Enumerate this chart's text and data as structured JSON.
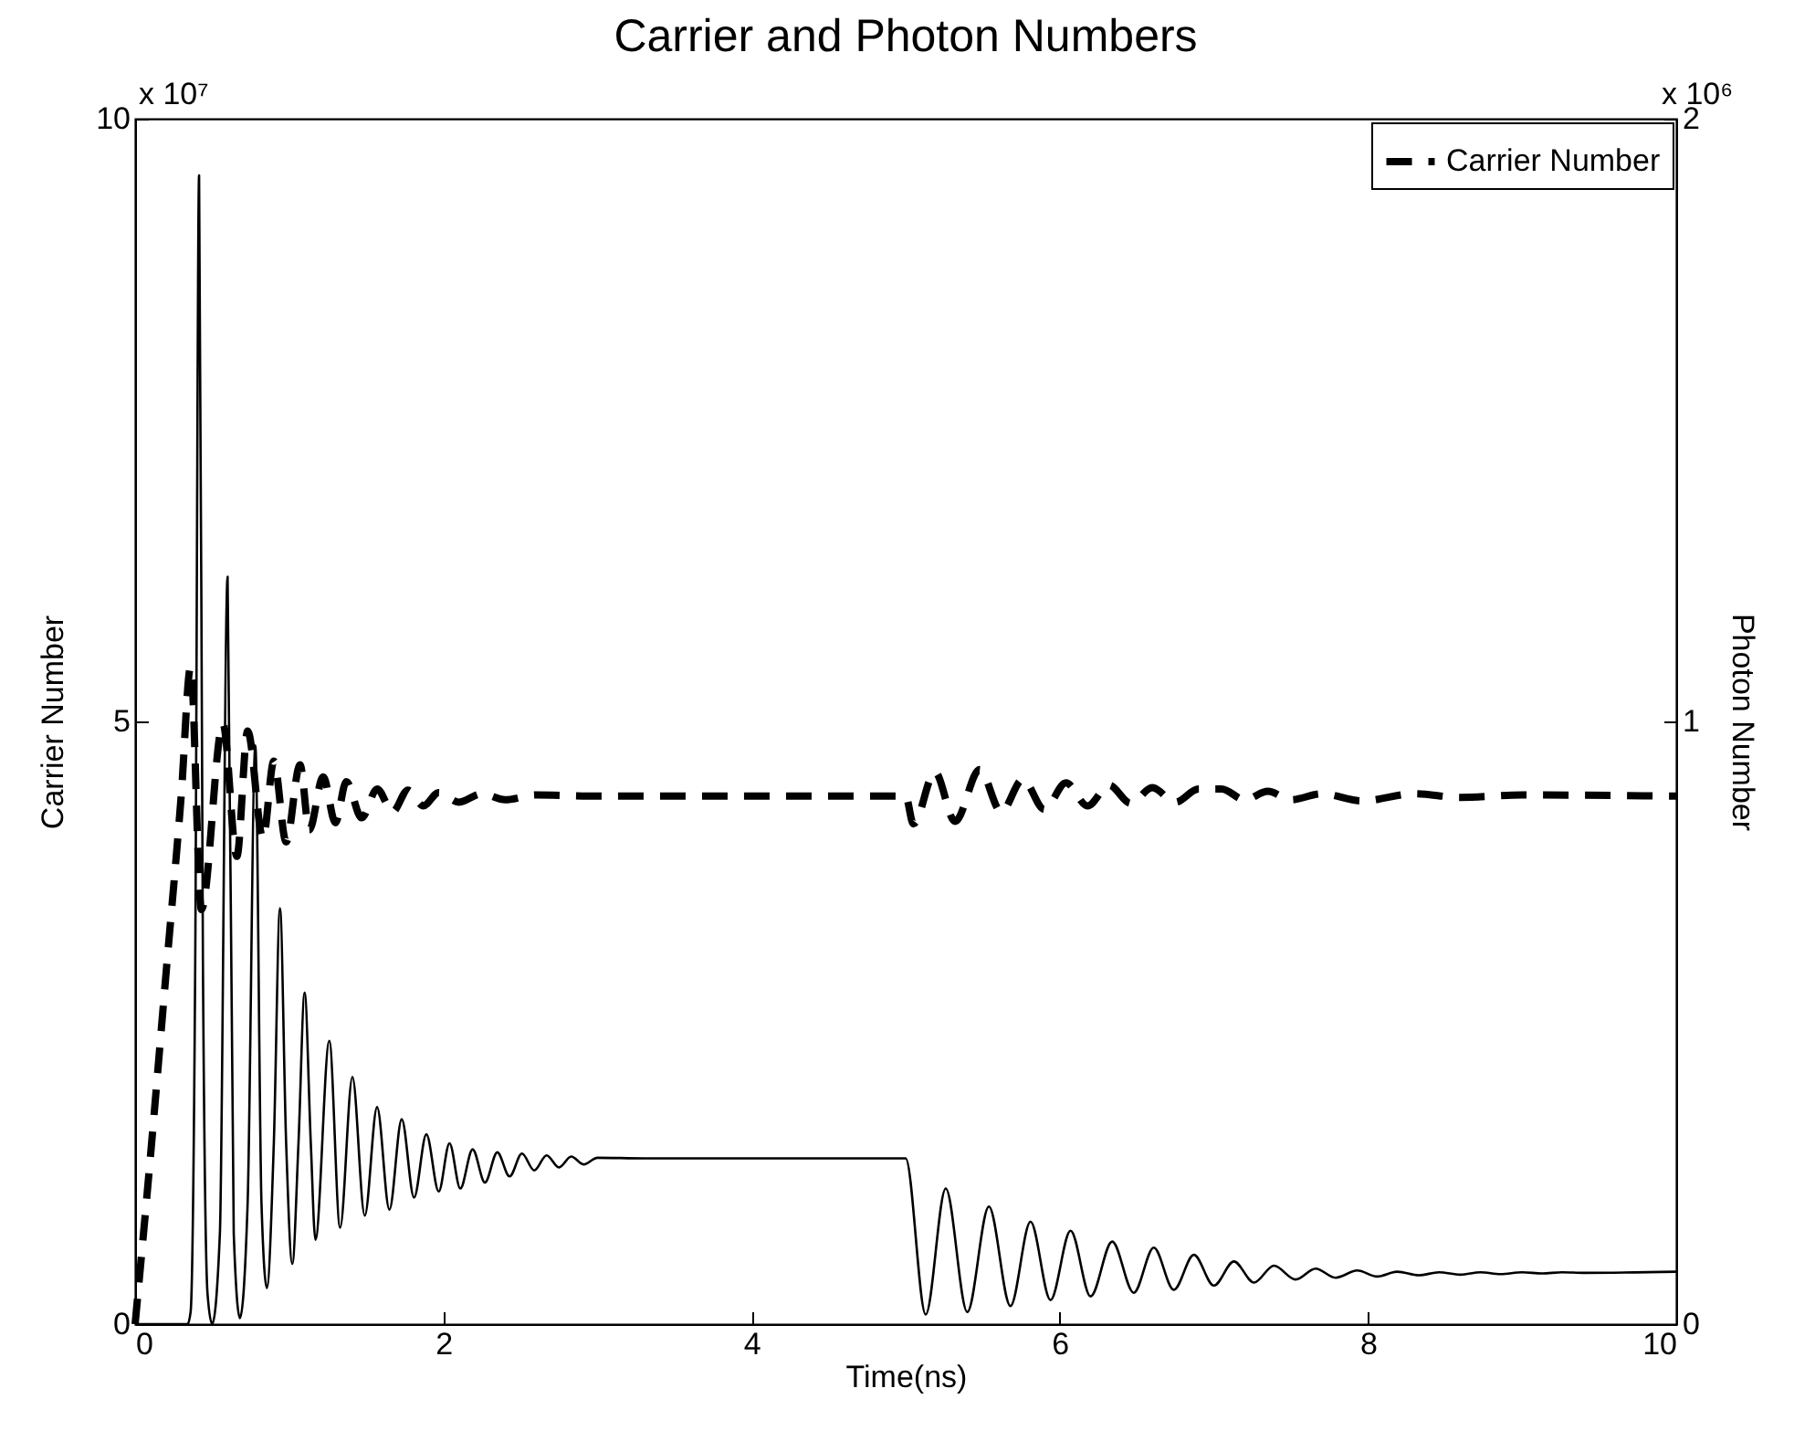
{
  "chart_data": {
    "type": "line",
    "title": "Carrier and Photon Numbers",
    "xlabel": "Time(ns)",
    "ylabel": "Carrier Number",
    "y2label": "Photon Number",
    "xlim": [
      0,
      10
    ],
    "xticks": [
      0,
      2,
      4,
      6,
      8,
      10
    ],
    "ylim": [
      0,
      10
    ],
    "yticks": [
      0,
      5,
      10
    ],
    "y2lim": [
      0,
      2
    ],
    "y2ticks": [
      0,
      1,
      2
    ],
    "grid": false,
    "legend": "top right",
    "marker": "none",
    "annotations": [
      "x 10⁷",
      "x 10⁶"
    ],
    "series": [
      {
        "name": "Carrier Number",
        "color": "#000000",
        "line_style": "dashed",
        "x": [
          0,
          0.1,
          0.2,
          0.3,
          0.36,
          0.43,
          0.57,
          0.66,
          0.73,
          0.83,
          0.9,
          0.98,
          1.07,
          1.13,
          1.22,
          1.3,
          1.37,
          1.47,
          1.57,
          1.67,
          1.77,
          1.87,
          1.97,
          2.1,
          2.25,
          2.4,
          2.6,
          3.0,
          5.0,
          5.05,
          5.19,
          5.32,
          5.48,
          5.62,
          5.76,
          5.9,
          6.04,
          6.18,
          6.32,
          6.46,
          6.6,
          6.75,
          6.9,
          7.05,
          7.2,
          7.35,
          7.5,
          7.7,
          7.96,
          8.3,
          8.6,
          9.0,
          10
        ],
        "values": [
          0,
          1.4,
          2.9,
          4.4,
          5.45,
          3.44,
          4.98,
          3.88,
          4.92,
          4.03,
          4.67,
          4.0,
          4.64,
          4.1,
          4.54,
          4.16,
          4.5,
          4.2,
          4.44,
          4.25,
          4.43,
          4.3,
          4.41,
          4.33,
          4.4,
          4.35,
          4.39,
          4.38,
          4.38,
          4.15,
          4.58,
          4.17,
          4.6,
          4.25,
          4.52,
          4.27,
          4.49,
          4.3,
          4.47,
          4.32,
          4.45,
          4.33,
          4.44,
          4.44,
          4.35,
          4.42,
          4.35,
          4.4,
          4.34,
          4.4,
          4.37,
          4.39,
          4.38
        ]
      },
      {
        "color": "#000000",
        "line_style": "solid",
        "axis": "y2",
        "x": [
          0,
          0.34,
          0.36,
          0.39,
          0.415,
          0.44,
          0.47,
          0.5,
          0.55,
          0.6,
          0.64,
          0.68,
          0.73,
          0.78,
          0.82,
          0.855,
          0.9,
          0.94,
          0.98,
          1.02,
          1.06,
          1.1,
          1.14,
          1.17,
          1.26,
          1.33,
          1.41,
          1.49,
          1.57,
          1.65,
          1.73,
          1.81,
          1.89,
          1.97,
          2.04,
          2.11,
          2.19,
          2.27,
          2.35,
          2.43,
          2.51,
          2.59,
          2.67,
          2.75,
          2.83,
          2.91,
          3.0,
          3.3,
          5.0,
          5.13,
          5.26,
          5.4,
          5.54,
          5.68,
          5.81,
          5.94,
          6.07,
          6.2,
          6.34,
          6.48,
          6.61,
          6.74,
          6.87,
          7.0,
          7.13,
          7.26,
          7.39,
          7.53,
          7.66,
          7.79,
          7.93,
          8.06,
          8.19,
          8.33,
          8.46,
          8.6,
          8.73,
          8.86,
          9.0,
          9.13,
          9.26,
          9.4,
          10
        ],
        "values": [
          0,
          0,
          0.02,
          0.6,
          1.906,
          0.6,
          0.05,
          0,
          0.15,
          1.24,
          0.15,
          0.01,
          0.2,
          0.96,
          0.2,
          0.06,
          0.3,
          0.69,
          0.3,
          0.1,
          0.3,
          0.55,
          0.3,
          0.14,
          0.47,
          0.16,
          0.41,
          0.18,
          0.36,
          0.19,
          0.34,
          0.21,
          0.315,
          0.22,
          0.3,
          0.225,
          0.29,
          0.235,
          0.285,
          0.245,
          0.283,
          0.255,
          0.28,
          0.26,
          0.278,
          0.265,
          0.276,
          0.275,
          0.275,
          0.016,
          0.225,
          0.02,
          0.195,
          0.03,
          0.17,
          0.04,
          0.155,
          0.046,
          0.137,
          0.052,
          0.127,
          0.057,
          0.115,
          0.064,
          0.104,
          0.069,
          0.097,
          0.074,
          0.092,
          0.077,
          0.089,
          0.079,
          0.087,
          0.081,
          0.086,
          0.082,
          0.086,
          0.083,
          0.086,
          0.084,
          0.086,
          0.085,
          0.087
        ]
      }
    ]
  }
}
